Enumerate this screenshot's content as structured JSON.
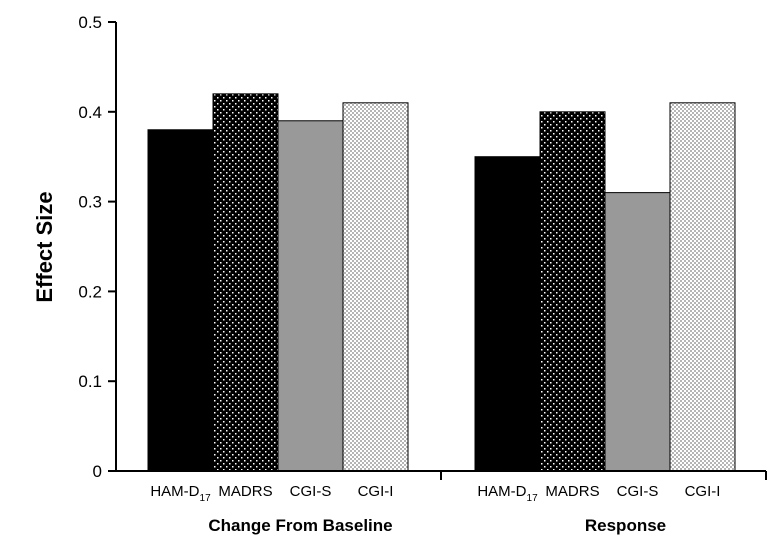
{
  "chart_data": {
    "type": "bar",
    "ylabel": "Effect Size",
    "ylim": [
      0,
      0.5
    ],
    "y_ticks": [
      "0",
      "0.1",
      "0.2",
      "0.3",
      "0.4",
      "0.5"
    ],
    "y_tick_values": [
      0,
      0.1,
      0.2,
      0.3,
      0.4,
      0.5
    ],
    "grid": false,
    "groups": [
      {
        "label": "Change From Baseline",
        "bars": [
          {
            "label": "HAM-D",
            "subscript": "17",
            "value": 0.38,
            "pattern": "solid-black"
          },
          {
            "label": "MADRS",
            "subscript": "",
            "value": 0.42,
            "pattern": "white-dots-on-black"
          },
          {
            "label": "CGI-S",
            "subscript": "",
            "value": 0.39,
            "pattern": "solid-gray"
          },
          {
            "label": "CGI-I",
            "subscript": "",
            "value": 0.41,
            "pattern": "light-checker"
          }
        ]
      },
      {
        "label": "Response",
        "bars": [
          {
            "label": "HAM-D",
            "subscript": "17",
            "value": 0.35,
            "pattern": "solid-black"
          },
          {
            "label": "MADRS",
            "subscript": "",
            "value": 0.4,
            "pattern": "white-dots-on-black"
          },
          {
            "label": "CGI-S",
            "subscript": "",
            "value": 0.31,
            "pattern": "solid-gray"
          },
          {
            "label": "CGI-I",
            "subscript": "",
            "value": 0.41,
            "pattern": "light-checker"
          }
        ]
      }
    ],
    "colors": {
      "solid_black": "#000000",
      "solid_gray": "#999999",
      "dots_bg": "#000000",
      "dots_fg": "#ffffff",
      "checker_light": "#ffffff",
      "checker_dark": "#b5b5b5"
    }
  }
}
